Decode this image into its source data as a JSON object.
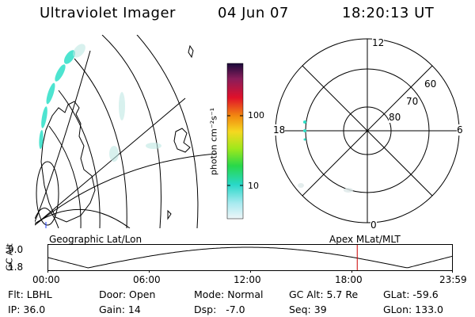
{
  "header": {
    "title": "Ultraviolet Imager",
    "date": "04 Jun 07",
    "time": "18:20:13 UT"
  },
  "colorbar": {
    "label": "photon cm⁻²s⁻¹",
    "tick_100": "100",
    "tick_10": "10"
  },
  "polar_plot": {
    "mlt_top": "12",
    "mlt_left": "18",
    "mlt_right": "6",
    "mlt_bottom": "0",
    "lat_60": "60",
    "lat_70": "70",
    "lat_80": "80"
  },
  "timeline": {
    "y_axis_label": "GC Alt",
    "y_max": "9.0",
    "y_min": "1.8",
    "left_caption": "Geographic Lat/Lon",
    "right_caption": "Apex MLat/MLT",
    "x_ticks": [
      "00:00",
      "06:00",
      "12:00",
      "18:00",
      "23:59"
    ],
    "current_time_marker_hours": 18.34
  },
  "status": {
    "filter": "Flt: LBHL",
    "ip": "IP: 36.0",
    "door": "Door: Open",
    "gain": "Gain: 14",
    "mode": "Mode: Normal",
    "dsp": "Dsp:   -7.0",
    "gc_alt": "GC Alt: 5.7 Re",
    "seq": "Seq: 39",
    "glat": "GLat: -59.6",
    "glon": "GLon: 133.0"
  },
  "colors": {
    "marker": "#cc0000",
    "aurora": "#2fe0c8"
  }
}
